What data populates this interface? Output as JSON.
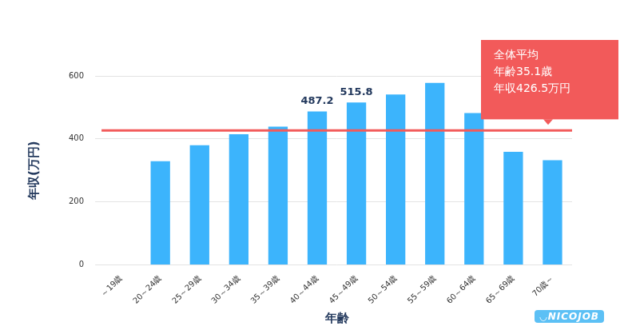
{
  "chart_data": {
    "type": "bar",
    "x_label": "年齢",
    "y_label": "年収(万円)",
    "categories": [
      "～19歳",
      "20～24歳",
      "25～29歳",
      "30～34歳",
      "35～39歳",
      "40～44歳",
      "45～49歳",
      "50～54歳",
      "55～59歳",
      "60～64歳",
      "65～69歳",
      "70歳～"
    ],
    "values": [
      null,
      329,
      380,
      415,
      439,
      487.2,
      515.8,
      541,
      578,
      482,
      359,
      332
    ],
    "value_labels": [
      null,
      null,
      null,
      null,
      null,
      "487.2",
      "515.8",
      null,
      null,
      null,
      null,
      null
    ],
    "data_labels": true,
    "color": "#3cb4fc",
    "ylim": [
      0,
      600
    ],
    "yticks": [
      0,
      200,
      400,
      600
    ],
    "grid": true,
    "annotation": {
      "y": 426.5,
      "color": "#f25a5a",
      "text": [
        "全体平均",
        "年齢35.1歳",
        "年収426.5万円"
      ]
    },
    "watermark": "◡NICOJOB"
  }
}
